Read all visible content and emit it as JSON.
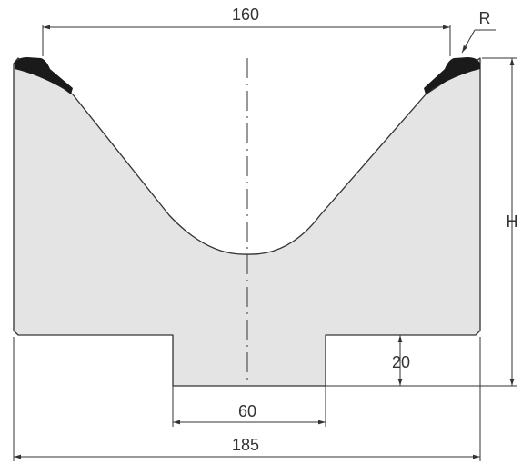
{
  "drawing": {
    "body_fill": "#e4e4e4",
    "outline_color": "#333333",
    "insert_color": "#1a1a1a"
  },
  "dimensions": {
    "top_opening": "160",
    "radius": "R",
    "height": "H",
    "tang_height": "20",
    "tang_width": "60",
    "overall_width": "185"
  }
}
